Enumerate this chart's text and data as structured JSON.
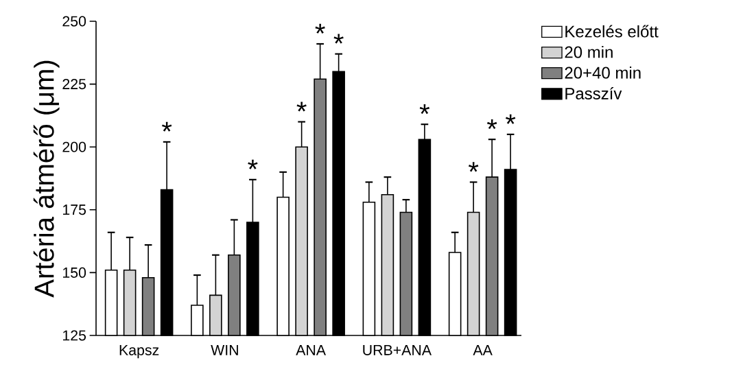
{
  "chart_data": {
    "type": "bar",
    "ylabel": "Artéria átmérő (μm)",
    "categories": [
      "Kapsz",
      "WIN",
      "ANA",
      "URB+ANA",
      "AA"
    ],
    "ylim": [
      125,
      250
    ],
    "yticks": [
      125,
      150,
      175,
      200,
      225,
      250
    ],
    "legend": "right",
    "series": [
      {
        "name": "Kezelés előtt",
        "color": "#ffffff",
        "values": [
          151,
          137,
          180,
          178,
          158
        ],
        "errors": [
          15,
          12,
          10,
          8,
          8
        ],
        "value_labels": [
          null,
          null,
          null,
          null,
          null
        ]
      },
      {
        "name": "20 min",
        "color": "#d3d3d3",
        "values": [
          151,
          141,
          200,
          181,
          174
        ],
        "errors": [
          13,
          16,
          10,
          7,
          12
        ],
        "value_labels": [
          null,
          null,
          "*",
          null,
          "*"
        ]
      },
      {
        "name": "20+40 min",
        "color": "#808080",
        "values": [
          148,
          157,
          227,
          174,
          188
        ],
        "errors": [
          13,
          14,
          14,
          5,
          15
        ],
        "value_labels": [
          null,
          null,
          "*",
          null,
          "*"
        ]
      },
      {
        "name": "Passzív",
        "color": "#000000",
        "values": [
          183,
          170,
          230,
          203,
          191
        ],
        "errors": [
          19,
          17,
          7,
          6,
          14
        ],
        "value_labels": [
          "*",
          "*",
          "*",
          "*",
          "*"
        ]
      }
    ]
  }
}
